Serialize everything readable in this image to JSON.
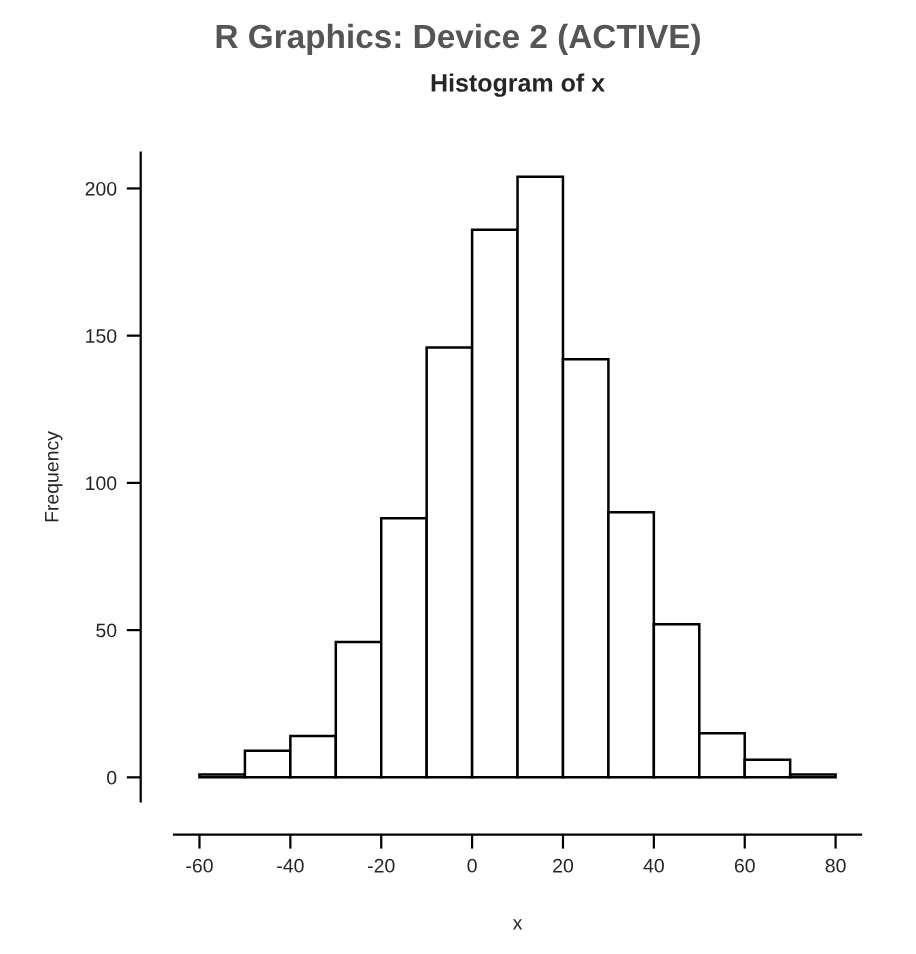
{
  "chart_data": {
    "type": "histogram",
    "title": "Histogram of x",
    "xlabel": "x",
    "ylabel": "Frequency",
    "bins": [
      -60,
      -50,
      -40,
      -30,
      -20,
      -10,
      0,
      10,
      20,
      30,
      40,
      50,
      60,
      70,
      80
    ],
    "values": [
      1,
      9,
      14,
      46,
      88,
      146,
      186,
      204,
      142,
      90,
      52,
      15,
      6,
      1
    ],
    "color": "#ffffff",
    "xlim": [
      -65.6,
      85.6
    ],
    "ylim": [
      -8.16,
      212.16
    ],
    "xticks": [
      -60,
      -40,
      -20,
      0,
      20,
      40,
      60,
      80
    ],
    "yticks": [
      0,
      50,
      100,
      150,
      200
    ],
    "annotations": [
      "R Graphics: Device 2 (ACTIVE)"
    ]
  }
}
